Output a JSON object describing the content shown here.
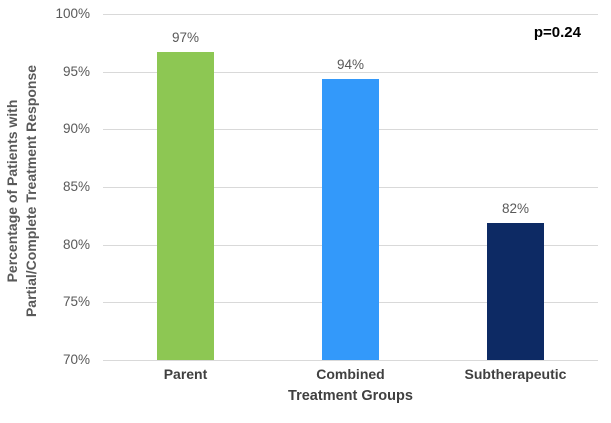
{
  "chart_data": {
    "type": "bar",
    "title": "",
    "xlabel": "Treatment Groups",
    "ylabel": "Percentage of Patients with Partial/Complete Treatment Response",
    "ylabel_lines": [
      "Percentage of Patients with",
      "Partial/Complete Treatment Response"
    ],
    "categories": [
      "Parent",
      "Combined",
      "Subtherapeutic"
    ],
    "values": [
      96.7,
      94.4,
      81.9
    ],
    "value_labels": [
      "97%",
      "94%",
      "82%"
    ],
    "bar_colors": [
      "#8DC753",
      "#3399FA",
      "#0D2A64"
    ],
    "ylim": [
      70,
      100
    ],
    "yticks": [
      100,
      95,
      90,
      85,
      80,
      75,
      70
    ],
    "ytick_labels": [
      "100%",
      "95%",
      "90%",
      "85%",
      "80%",
      "75%",
      "70%"
    ],
    "grid": true,
    "gridline_color": "#D9D9D9",
    "legend": "none",
    "annotation": "p=0.24",
    "annotation_color": "#000000",
    "text_color_ticks": "#595959",
    "text_color_labels": "#404040",
    "background": "#FFFFFF"
  }
}
